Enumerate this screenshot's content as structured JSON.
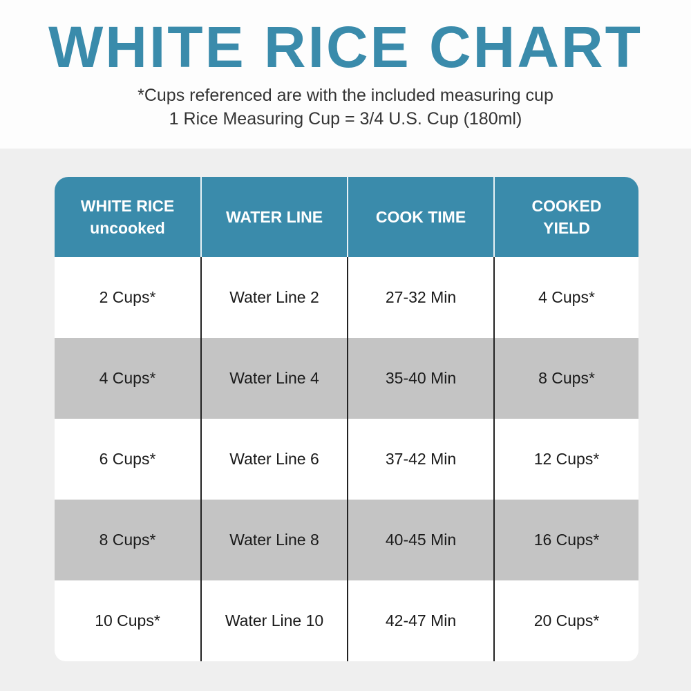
{
  "title": "WHITE RICE CHART",
  "subtitle_lines": [
    "*Cups referenced are with the included measuring cup",
    "1 Rice Measuring Cup = 3/4 U.S. Cup (180ml)"
  ],
  "table": {
    "headers": [
      {
        "line1": "WHITE RICE",
        "line2": "uncooked"
      },
      {
        "line1": "WATER LINE",
        "line2": ""
      },
      {
        "line1": "COOK TIME",
        "line2": ""
      },
      {
        "line1": "COOKED",
        "line2": "YIELD"
      }
    ],
    "rows": [
      [
        "2 Cups*",
        "Water Line 2",
        "27-32 Min",
        "4 Cups*"
      ],
      [
        "4 Cups*",
        "Water Line 4",
        "35-40 Min",
        "8 Cups*"
      ],
      [
        "6 Cups*",
        "Water Line 6",
        "37-42 Min",
        "12 Cups*"
      ],
      [
        "8 Cups*",
        "Water Line 8",
        "40-45 Min",
        "16 Cups*"
      ],
      [
        "10 Cups*",
        "Water Line 10",
        "42-47 Min",
        "20 Cups*"
      ]
    ]
  },
  "colors": {
    "accent": "#3a8bab",
    "stripe": "#c4c4c4"
  }
}
